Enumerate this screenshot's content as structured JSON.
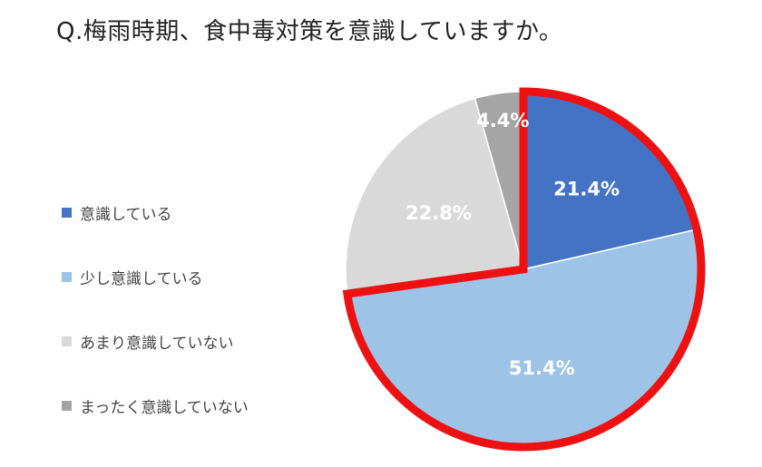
{
  "chart_data": {
    "type": "pie",
    "title": "Q.梅雨時期、食中毒対策を意識していますか。",
    "slices": [
      {
        "label": "意識している",
        "value": 21.4,
        "display": "21.4%",
        "color": "#4472c4"
      },
      {
        "label": "少し意識している",
        "value": 51.4,
        "display": "51.4%",
        "color": "#9dc3e6"
      },
      {
        "label": "あまり意識していない",
        "value": 22.8,
        "display": "22.8%",
        "color": "#d9d9d9"
      },
      {
        "label": "まったく意識していない",
        "value": 4.4,
        "display": "4.4%",
        "color": "#a5a5a5"
      }
    ],
    "highlight": {
      "slices": [
        "意識している",
        "少し意識している"
      ],
      "color": "#ee1111"
    },
    "legend_position": "left"
  }
}
